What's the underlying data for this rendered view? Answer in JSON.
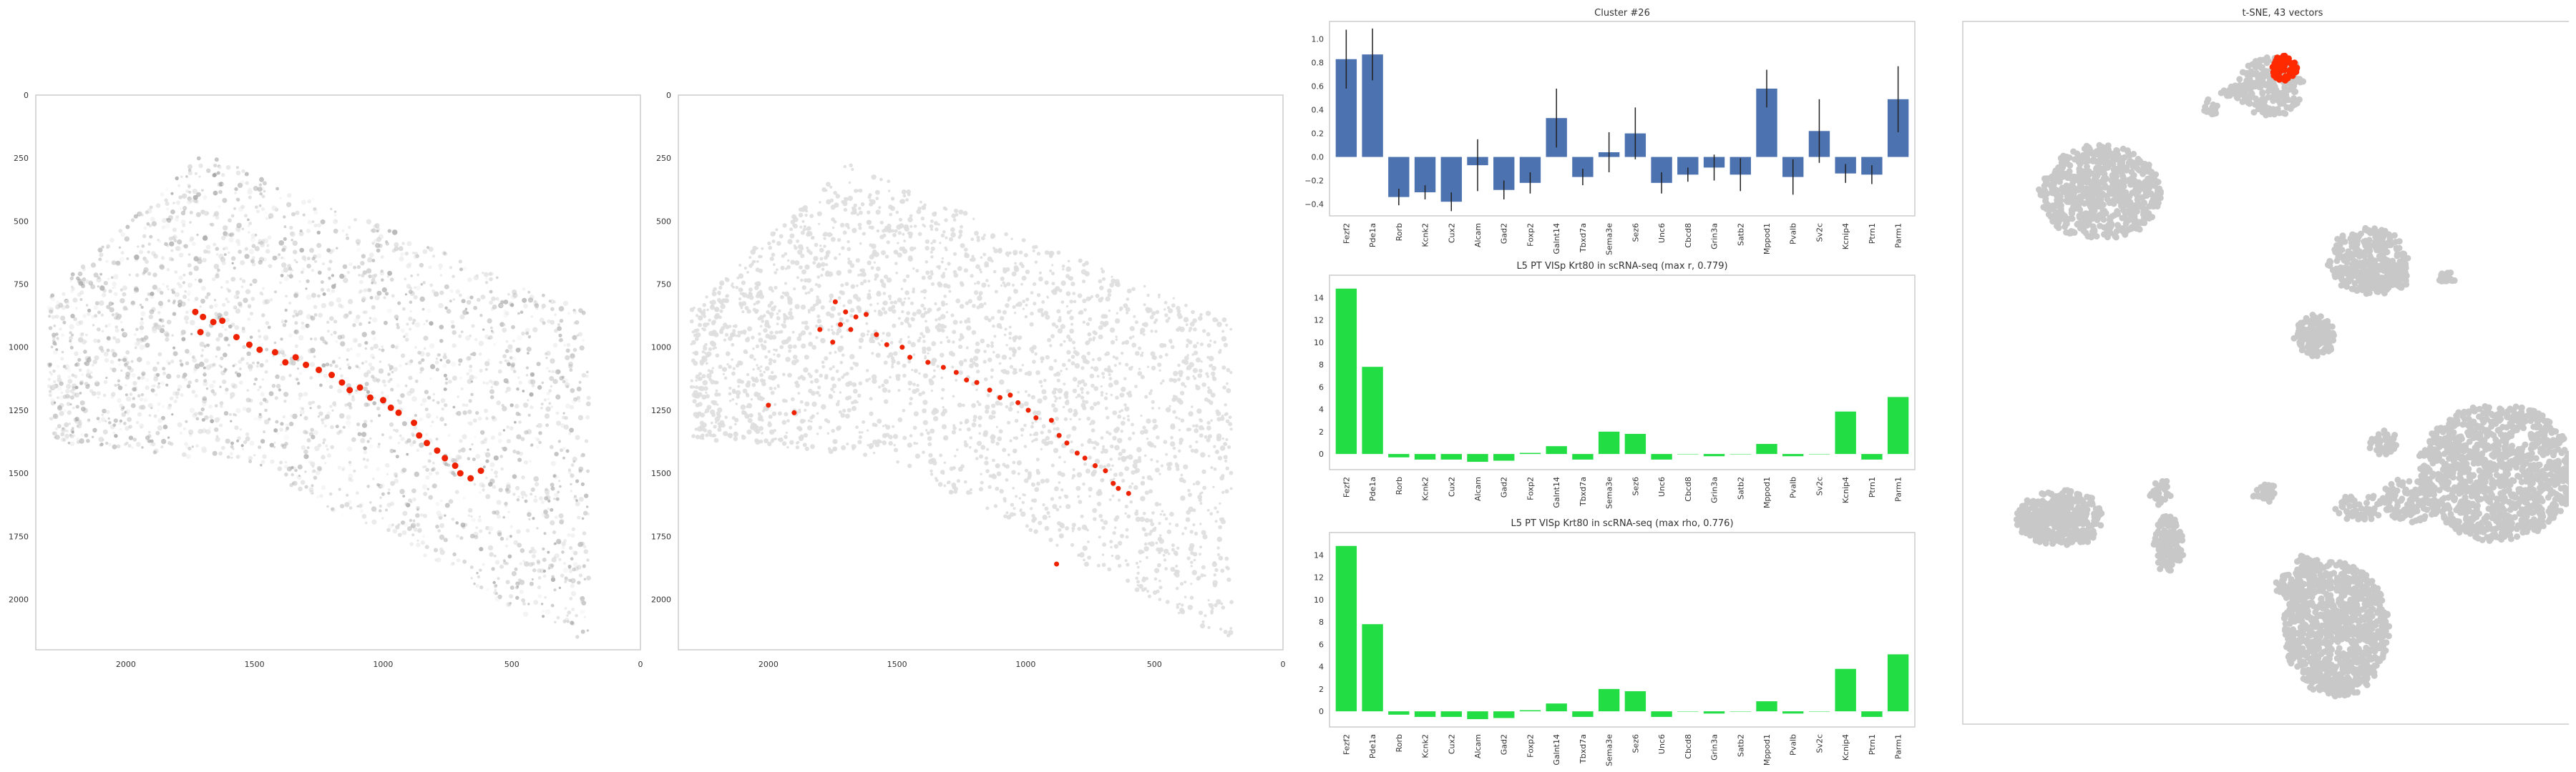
{
  "chart_data": [
    {
      "type": "scatter",
      "panel": "tissue-expression",
      "xlim": [
        2350,
        0
      ],
      "ylim": [
        2200,
        0
      ],
      "xticks": [
        2000,
        1500,
        1000,
        500,
        0
      ],
      "yticks": [
        0,
        250,
        500,
        750,
        1000,
        1250,
        1500,
        1750,
        2000
      ],
      "grid": false,
      "highlight_points": [
        [
          1730,
          860
        ],
        [
          1700,
          880
        ],
        [
          1660,
          900
        ],
        [
          1625,
          895
        ],
        [
          1710,
          940
        ],
        [
          1570,
          960
        ],
        [
          1520,
          990
        ],
        [
          1480,
          1010
        ],
        [
          1420,
          1020
        ],
        [
          1380,
          1060
        ],
        [
          1340,
          1040
        ],
        [
          1300,
          1070
        ],
        [
          1250,
          1090
        ],
        [
          1200,
          1110
        ],
        [
          1160,
          1140
        ],
        [
          1130,
          1170
        ],
        [
          1090,
          1160
        ],
        [
          1050,
          1200
        ],
        [
          1000,
          1210
        ],
        [
          970,
          1240
        ],
        [
          940,
          1260
        ],
        [
          880,
          1300
        ],
        [
          860,
          1350
        ],
        [
          830,
          1380
        ],
        [
          790,
          1410
        ],
        [
          760,
          1440
        ],
        [
          720,
          1470
        ],
        [
          700,
          1500
        ],
        [
          660,
          1520
        ],
        [
          620,
          1490
        ]
      ],
      "colors": {
        "background_cells": "#c8c8c8",
        "highlight": "#ee2200"
      }
    },
    {
      "type": "scatter",
      "panel": "tissue-segmentation",
      "xlim": [
        2350,
        0
      ],
      "ylim": [
        2200,
        0
      ],
      "xticks": [
        2000,
        1500,
        1000,
        500,
        0
      ],
      "yticks": [
        0,
        250,
        500,
        750,
        1000,
        1250,
        1500,
        1750,
        2000
      ],
      "grid": false,
      "highlight_points": [
        [
          1740,
          820
        ],
        [
          1700,
          860
        ],
        [
          1660,
          880
        ],
        [
          1620,
          870
        ],
        [
          1720,
          910
        ],
        [
          1680,
          930
        ],
        [
          1580,
          950
        ],
        [
          1540,
          990
        ],
        [
          1480,
          1000
        ],
        [
          1450,
          1040
        ],
        [
          1380,
          1060
        ],
        [
          1320,
          1080
        ],
        [
          1270,
          1100
        ],
        [
          1230,
          1130
        ],
        [
          1190,
          1140
        ],
        [
          1140,
          1170
        ],
        [
          1100,
          1200
        ],
        [
          1060,
          1190
        ],
        [
          1030,
          1220
        ],
        [
          990,
          1250
        ],
        [
          960,
          1280
        ],
        [
          900,
          1290
        ],
        [
          870,
          1350
        ],
        [
          840,
          1380
        ],
        [
          800,
          1420
        ],
        [
          770,
          1440
        ],
        [
          730,
          1470
        ],
        [
          690,
          1490
        ],
        [
          660,
          1540
        ],
        [
          640,
          1560
        ],
        [
          600,
          1580
        ],
        [
          880,
          1860
        ],
        [
          1800,
          930
        ],
        [
          1750,
          980
        ],
        [
          2000,
          1230
        ],
        [
          1900,
          1260
        ]
      ],
      "colors": {
        "background_cells": "#dcdcdc",
        "highlight": "#ee2200"
      }
    },
    {
      "type": "bar",
      "title": "Cluster #26",
      "categories": [
        "Fezf2",
        "Pde1a",
        "Rorb",
        "Kcnk2",
        "Cux2",
        "Alcam",
        "Gad2",
        "Foxp2",
        "Galnt14",
        "Tbxd7a",
        "Sema3e",
        "Sez6",
        "Unc6",
        "Cbcd8",
        "Grin3a",
        "Satb2",
        "Mppod1",
        "Pvalb",
        "Sv2c",
        "Kcnip4",
        "Ptrn1",
        "Parm1"
      ],
      "values": [
        0.83,
        0.87,
        -0.34,
        -0.3,
        -0.38,
        -0.07,
        -0.28,
        -0.22,
        0.33,
        -0.17,
        0.04,
        0.2,
        -0.22,
        -0.15,
        -0.09,
        -0.15,
        0.58,
        -0.17,
        0.22,
        -0.14,
        -0.15,
        0.49
      ],
      "errors": [
        0.25,
        0.22,
        0.07,
        0.06,
        0.08,
        0.22,
        0.08,
        0.09,
        0.25,
        0.07,
        0.17,
        0.22,
        0.09,
        0.06,
        0.11,
        0.14,
        0.16,
        0.15,
        0.27,
        0.08,
        0.08,
        0.28
      ],
      "ylim": [
        -0.5,
        1.15
      ],
      "yticks": [
        -0.4,
        -0.2,
        0.0,
        0.2,
        0.4,
        0.6,
        0.8,
        1.0
      ],
      "ytick_labels": [
        "−0.4",
        "−0.2",
        "0.0",
        "0.2",
        "0.4",
        "0.6",
        "0.8",
        "1.0"
      ],
      "grid": false,
      "colors": {
        "bar": "#4c72b0",
        "error": "#222222"
      }
    },
    {
      "type": "bar",
      "title": "L5 PT VISp Krt80 in scRNA-seq (max r, 0.779)",
      "categories": [
        "Fezf2",
        "Pde1a",
        "Rorb",
        "Kcnk2",
        "Cux2",
        "Alcam",
        "Gad2",
        "Foxp2",
        "Galnt14",
        "Tbxd7a",
        "Sema3e",
        "Sez6",
        "Unc6",
        "Cbcd8",
        "Grin3a",
        "Satb2",
        "Mppod1",
        "Pvalb",
        "Sv2c",
        "Kcnip4",
        "Ptrn1",
        "Parm1"
      ],
      "values": [
        14.8,
        7.8,
        -0.3,
        -0.5,
        -0.5,
        -0.7,
        -0.6,
        0.1,
        0.7,
        -0.5,
        2.0,
        1.8,
        -0.5,
        0.0,
        -0.2,
        0.0,
        0.9,
        -0.2,
        0.0,
        3.8,
        -0.5,
        5.1
      ],
      "ylim": [
        -1.4,
        16
      ],
      "yticks": [
        0,
        2,
        4,
        6,
        8,
        10,
        12,
        14
      ],
      "grid": false,
      "colors": {
        "bar": "#22dd44"
      }
    },
    {
      "type": "bar",
      "title": "L5 PT VISp Krt80 in scRNA-seq (max rho, 0.776)",
      "categories": [
        "Fezf2",
        "Pde1a",
        "Rorb",
        "Kcnk2",
        "Cux2",
        "Alcam",
        "Gad2",
        "Foxp2",
        "Galnt14",
        "Tbxd7a",
        "Sema3e",
        "Sez6",
        "Unc6",
        "Cbcd8",
        "Grin3a",
        "Satb2",
        "Mppod1",
        "Pvalb",
        "Sv2c",
        "Kcnip4",
        "Ptrn1",
        "Parm1"
      ],
      "values": [
        14.8,
        7.8,
        -0.3,
        -0.5,
        -0.5,
        -0.7,
        -0.6,
        0.1,
        0.7,
        -0.5,
        2.0,
        1.8,
        -0.5,
        0.0,
        -0.2,
        0.0,
        0.9,
        -0.2,
        0.0,
        3.8,
        -0.5,
        5.1
      ],
      "ylim": [
        -1.4,
        16
      ],
      "yticks": [
        0,
        2,
        4,
        6,
        8,
        10,
        12,
        14
      ],
      "grid": false,
      "colors": {
        "bar": "#22dd44"
      }
    },
    {
      "type": "scatter",
      "panel": "tsne",
      "title": "t-SNE, 43 vectors",
      "grid": false,
      "axes": "hidden",
      "colors": {
        "points": "#c8c8c8",
        "highlight": "#ff2a00"
      }
    }
  ]
}
